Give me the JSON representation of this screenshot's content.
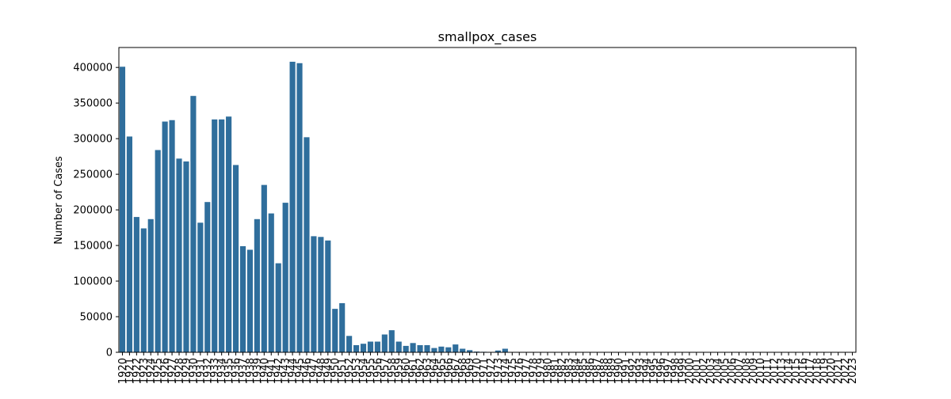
{
  "chart_data": {
    "type": "bar",
    "title": "smallpox_cases",
    "xlabel": "",
    "ylabel": "Number of Cases",
    "ylim": [
      0,
      428000
    ],
    "yticks": [
      0,
      50000,
      100000,
      150000,
      200000,
      250000,
      300000,
      350000,
      400000
    ],
    "grid": false,
    "bar_color": "#2f6e9c",
    "categories": [
      "1920",
      "1921",
      "1922",
      "1923",
      "1924",
      "1925",
      "1926",
      "1927",
      "1928",
      "1929",
      "1930",
      "1931",
      "1932",
      "1933",
      "1934",
      "1935",
      "1936",
      "1937",
      "1938",
      "1939",
      "1940",
      "1941",
      "1942",
      "1943",
      "1944",
      "1945",
      "1946",
      "1947",
      "1948",
      "1949",
      "1950",
      "1951",
      "1952",
      "1953",
      "1954",
      "1955",
      "1956",
      "1957",
      "1958",
      "1959",
      "1960",
      "1961",
      "1962",
      "1963",
      "1964",
      "1965",
      "1966",
      "1967",
      "1968",
      "1969",
      "1970",
      "1971",
      "1972",
      "1973",
      "1974",
      "1975",
      "1976",
      "1977",
      "1978",
      "1979",
      "1980",
      "1981",
      "1982",
      "1983",
      "1984",
      "1985",
      "1986",
      "1987",
      "1988",
      "1989",
      "1990",
      "1991",
      "1992",
      "1993",
      "1994",
      "1995",
      "1996",
      "1997",
      "1998",
      "1999",
      "2000",
      "2001",
      "2002",
      "2003",
      "2004",
      "2005",
      "2006",
      "2007",
      "2008",
      "2009",
      "2010",
      "2011",
      "2012",
      "2013",
      "2014",
      "2015",
      "2016",
      "2017",
      "2018",
      "2019",
      "2020",
      "2021",
      "2022",
      "2023"
    ],
    "values": [
      401000,
      303000,
      190000,
      174000,
      187000,
      284000,
      324000,
      326000,
      272000,
      268000,
      360000,
      182000,
      211000,
      327000,
      327000,
      331000,
      263000,
      149000,
      144000,
      187000,
      235000,
      195000,
      125000,
      210000,
      408000,
      406000,
      302000,
      163000,
      162000,
      157000,
      61000,
      69000,
      23000,
      10000,
      12000,
      15000,
      15000,
      25000,
      31000,
      15000,
      9000,
      13000,
      10000,
      10000,
      6000,
      8000,
      7000,
      11000,
      5000,
      3000,
      1000,
      700,
      500,
      2500,
      5000,
      0,
      0,
      0,
      0,
      0,
      0,
      0,
      0,
      0,
      0,
      0,
      0,
      0,
      0,
      0,
      0,
      0,
      0,
      0,
      0,
      0,
      0,
      0,
      0,
      0,
      0,
      0,
      0,
      0,
      0,
      0,
      0,
      0,
      0,
      0,
      0,
      0,
      0,
      0,
      0,
      0,
      0,
      0,
      0,
      0,
      0,
      0,
      0,
      0
    ]
  }
}
